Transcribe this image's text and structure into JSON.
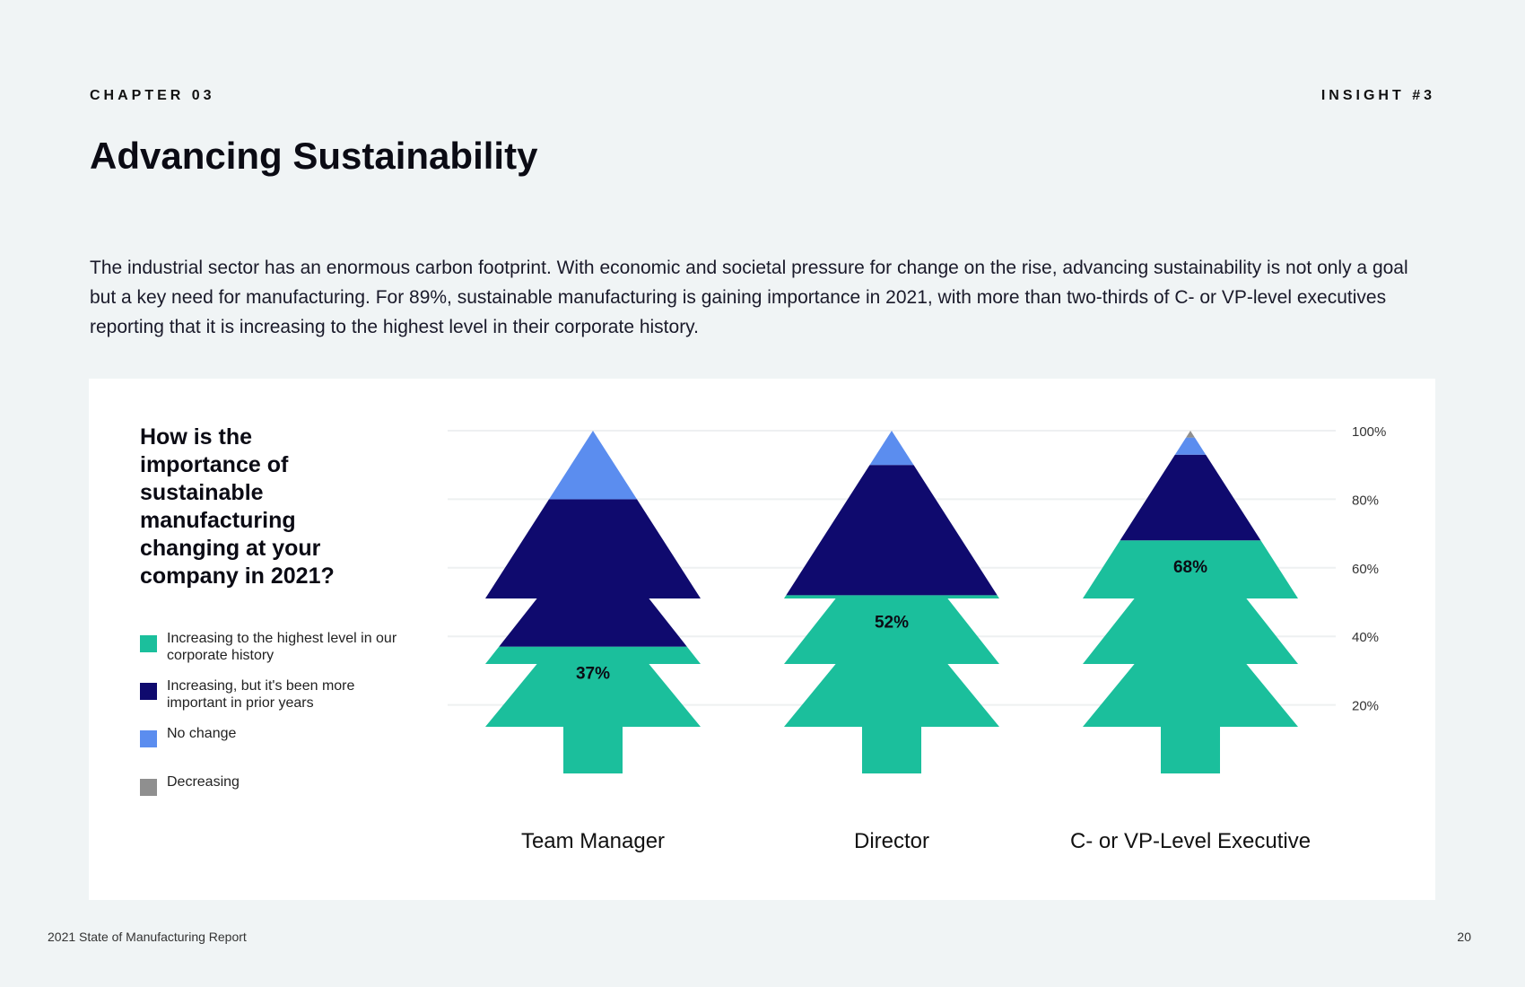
{
  "header": {
    "chapter": "CHAPTER 03",
    "insight": "INSIGHT #3"
  },
  "title": "Advancing Sustainability",
  "intro": "The industrial sector has an enormous carbon footprint. With economic and societal pressure for change on the rise, advancing sustainability is not only a goal but a key need for manufacturing. For 89%, sustainable manufacturing is gaining importance in 2021, with more than two-thirds of C- or VP-level executives reporting that it is increasing to the highest level in their corporate history.",
  "question": "How is the importance of sustainable manufacturing changing at your company in 2021?",
  "legend": [
    {
      "label": "Increasing to the highest level in our corporate history",
      "color": "#1bbf9c"
    },
    {
      "label": "Increasing, but it's been more important in prior years",
      "color": "#0f0a6e"
    },
    {
      "label": "No change",
      "color": "#5b8def"
    },
    {
      "label": "Decreasing",
      "color": "#8f8f8f"
    }
  ],
  "footer": {
    "left": "2021 State of Manufacturing Report",
    "page": "20"
  },
  "chart_data": {
    "type": "bar",
    "stacked": true,
    "orientation": "vertical",
    "shape": "tree",
    "categories": [
      "Team Manager",
      "Director",
      "C- or VP-Level Executive"
    ],
    "series": [
      {
        "name": "Increasing to the highest level in our corporate history",
        "color": "#1bbf9c",
        "values": [
          37,
          52,
          68
        ]
      },
      {
        "name": "Increasing, but it's been more important in prior years",
        "color": "#0f0a6e",
        "values": [
          43,
          38,
          25
        ]
      },
      {
        "name": "No change",
        "color": "#5b8def",
        "values": [
          20,
          10,
          5
        ]
      },
      {
        "name": "Decreasing",
        "color": "#8f8f8f",
        "values": [
          0,
          0,
          2
        ]
      }
    ],
    "data_labels": [
      "37%",
      "52%",
      "68%"
    ],
    "y_ticks": [
      {
        "value": 20,
        "label": "20%"
      },
      {
        "value": 40,
        "label": "40%"
      },
      {
        "value": 60,
        "label": "60%"
      },
      {
        "value": 80,
        "label": "80%"
      },
      {
        "value": 100,
        "label": "100%"
      }
    ],
    "ylim": [
      0,
      100
    ],
    "grid": true,
    "legend_position": "left"
  }
}
